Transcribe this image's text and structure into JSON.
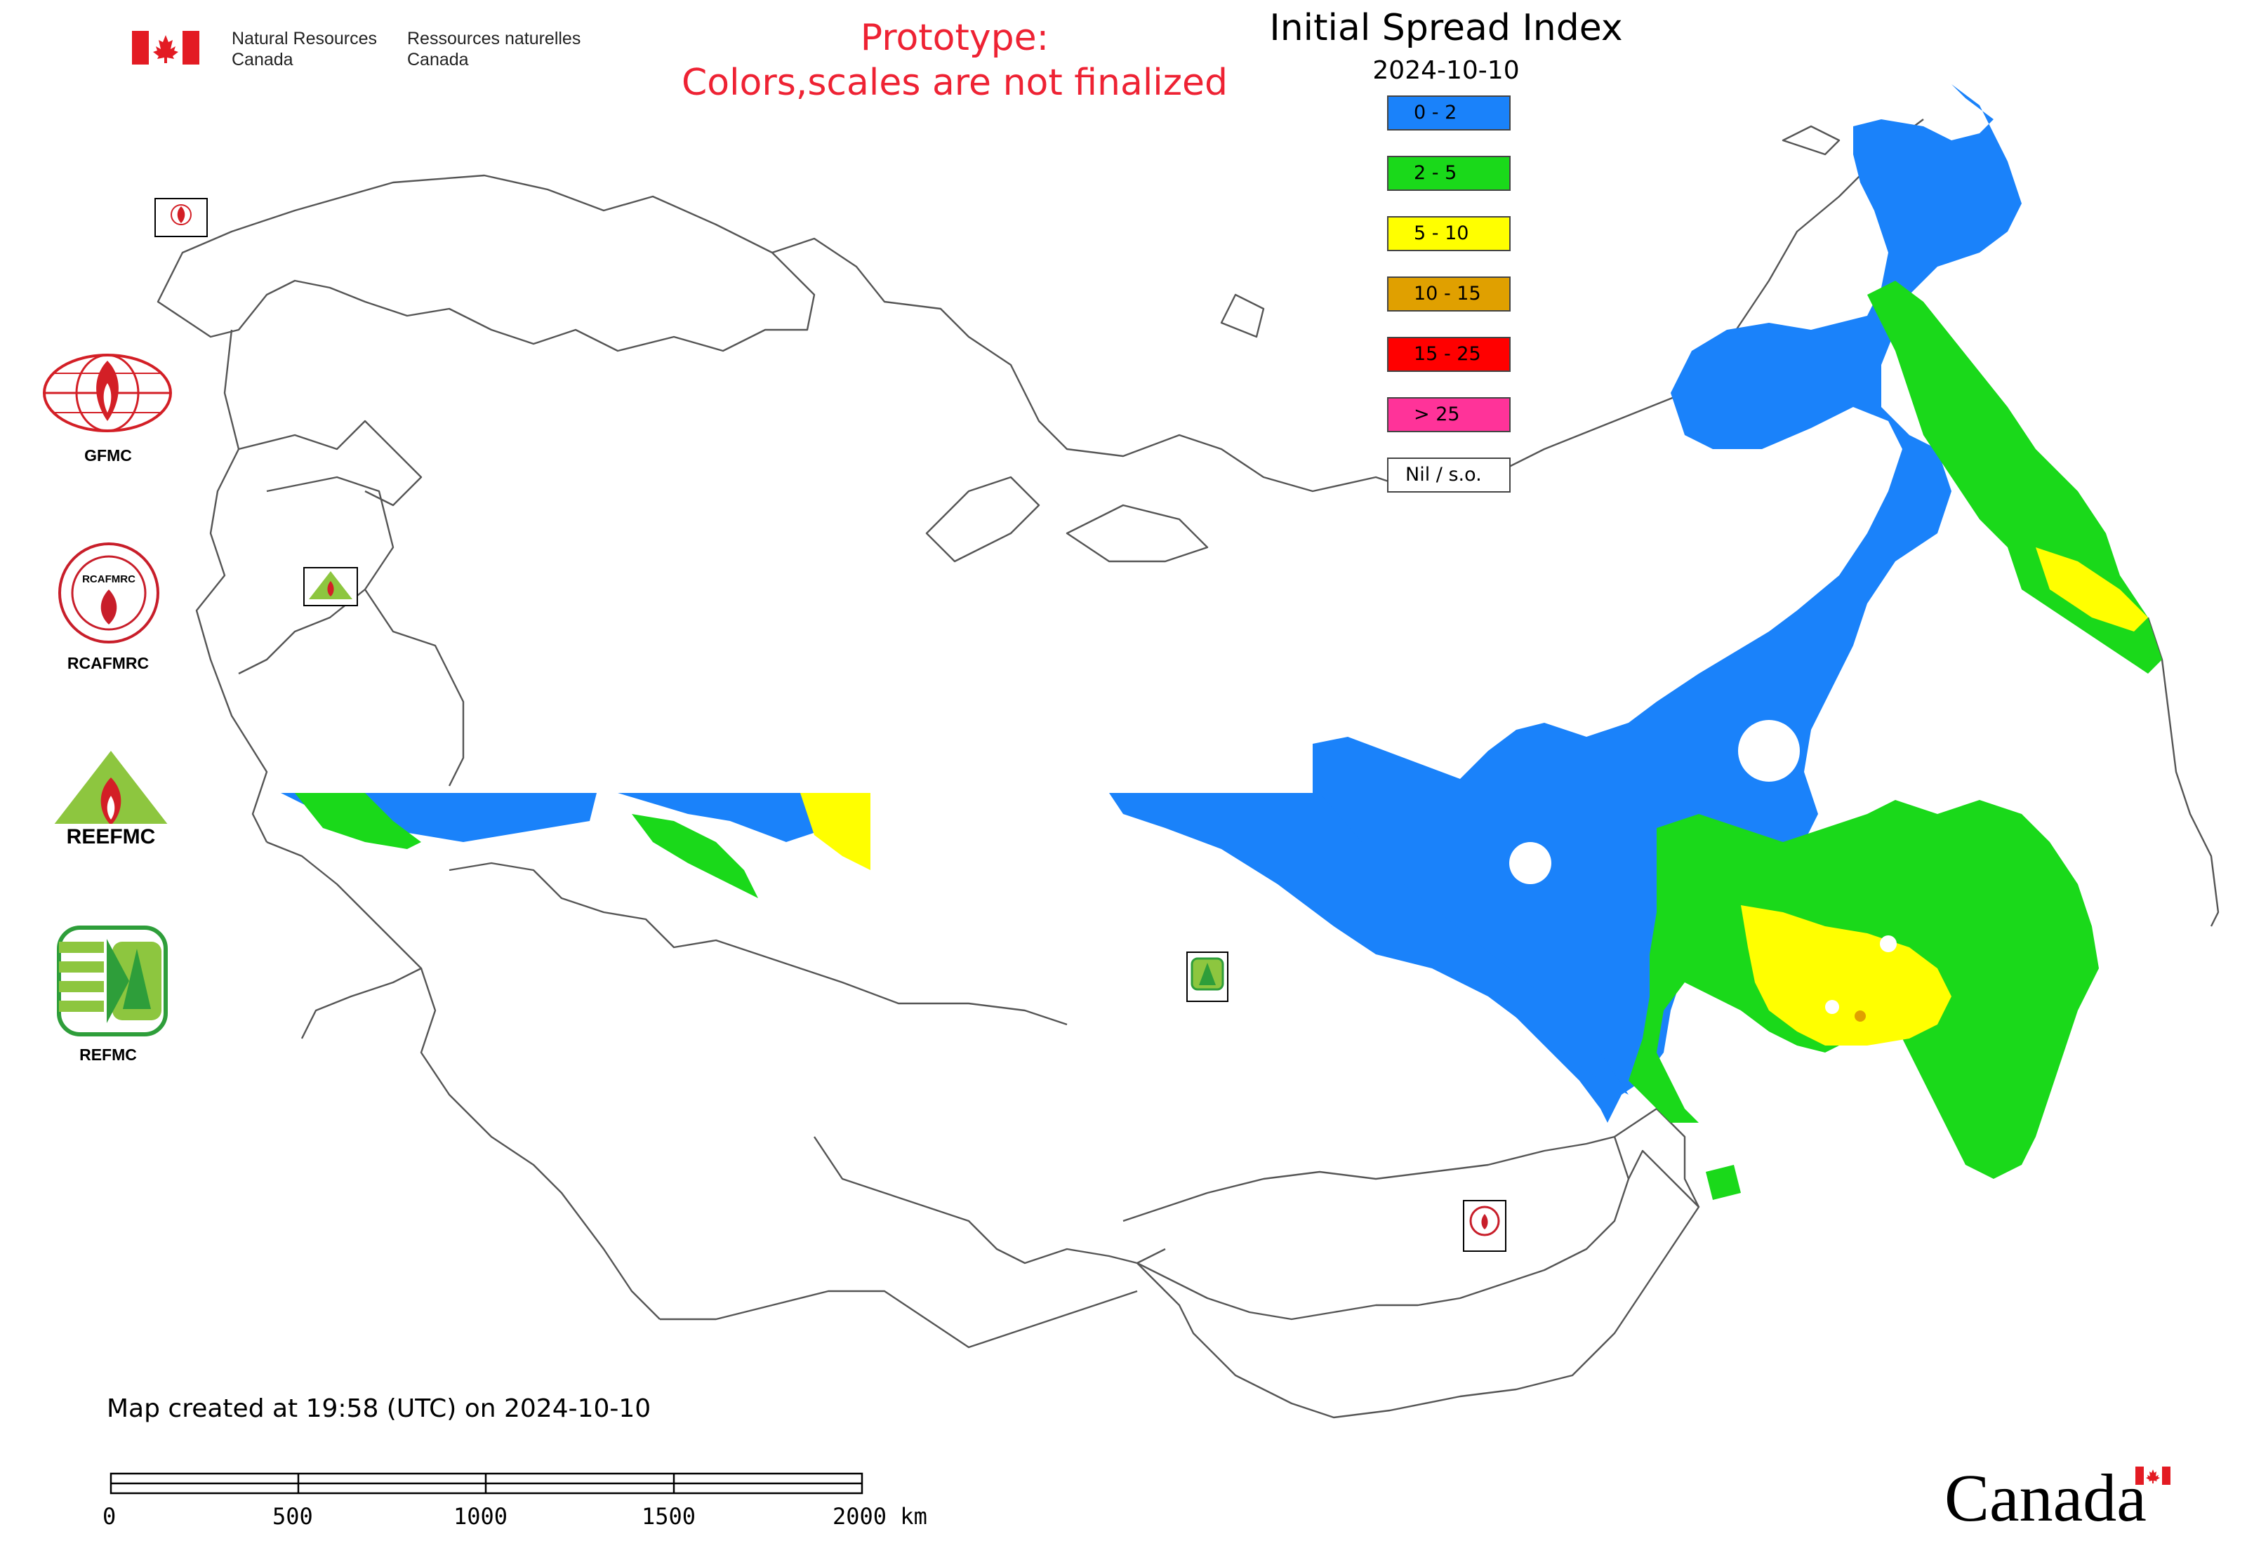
{
  "header": {
    "org_en_line1": "Natural Resources",
    "org_en_line2": "Canada",
    "org_fr_line1": "Ressources naturelles",
    "org_fr_line2": "Canada",
    "prototype_line1": "Prototype:",
    "prototype_line2": "Colors,scales are not finalized"
  },
  "map": {
    "title": "Initial Spread Index",
    "date": "2024-10-10",
    "legend": [
      {
        "label": "0 - 2",
        "color": "#1a82fa"
      },
      {
        "label": "2 - 5",
        "color": "#1ad91a"
      },
      {
        "label": "5 - 10",
        "color": "#ffff00"
      },
      {
        "label": "10 - 15",
        "color": "#e0a000"
      },
      {
        "label": "15 - 25",
        "color": "#ff0000"
      },
      {
        "label": "> 25",
        "color": "#ff3399"
      },
      {
        "label": "Nil / s.o.",
        "color": "#ffffff"
      }
    ],
    "colors": {
      "low": "#1a82fa",
      "moderate": "#1ad91a",
      "high": "#ffff00",
      "veryhigh": "#e0a000",
      "border": "#555555"
    }
  },
  "logos": {
    "gfmc": "GFMC",
    "rcafmrc": "RCAFMRC",
    "reefmc_text": "REEFMC",
    "refmc": "REFMC",
    "ring_text": "RCAFMRC"
  },
  "footer": {
    "created": "Map created at 19:58 (UTC) on 2024-10-10",
    "scale_ticks": [
      "0",
      "500",
      "1000",
      "1500",
      "2000 km"
    ],
    "wordmark": "Canada"
  }
}
